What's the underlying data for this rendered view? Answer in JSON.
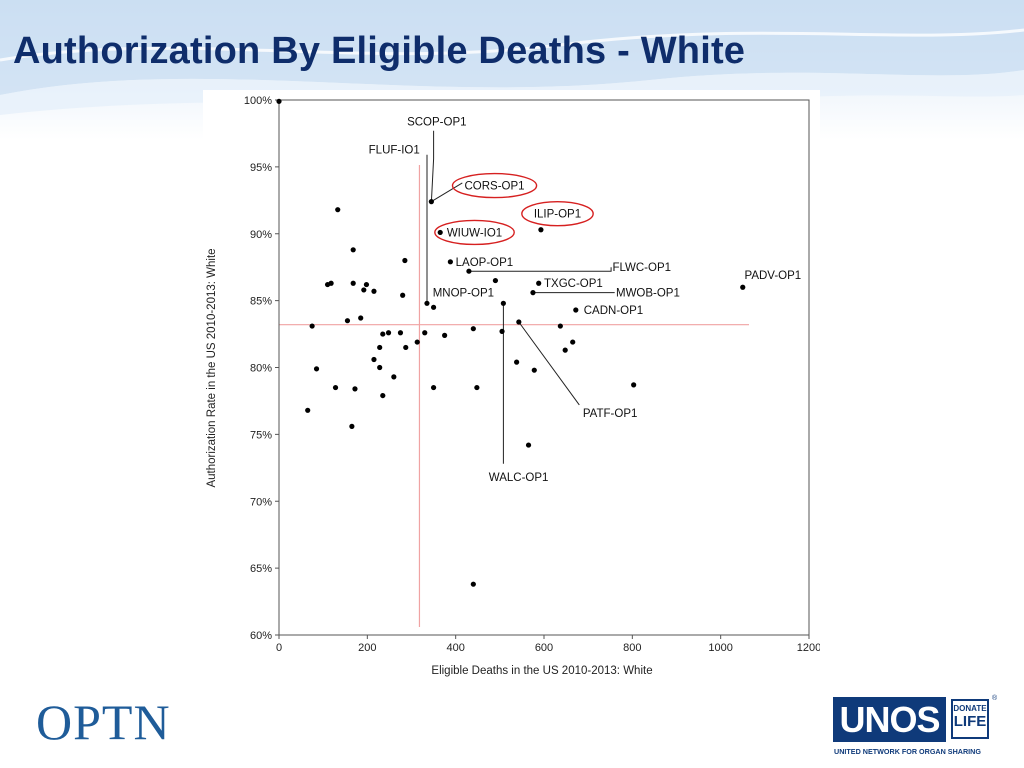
{
  "slide": {
    "title": "Authorization By Eligible Deaths - White"
  },
  "logos": {
    "optn": "OPTN",
    "unos": "UNOS",
    "donate_life_top": "DONATE",
    "donate_life_bottom": "LIFE",
    "registered": "®",
    "unos_tagline": "UNITED NETWORK FOR ORGAN SHARING"
  },
  "colors": {
    "title": "#0f2d6b",
    "reference_line": "#f0a3a3",
    "highlight_ellipse": "#d62020",
    "point": "#000000"
  },
  "chart_data": {
    "type": "scatter",
    "title": "",
    "xlabel": "Eligible Deaths in the US 2010-2013: White",
    "ylabel": "Authorization Rate in the US 2010-2013: White",
    "xlim": [
      0,
      1200
    ],
    "ylim": [
      60,
      100
    ],
    "xticks": [
      {
        "value": 0,
        "label": "0"
      },
      {
        "value": 200,
        "label": "200"
      },
      {
        "value": 400,
        "label": "400"
      },
      {
        "value": 600,
        "label": "600"
      },
      {
        "value": 800,
        "label": "800"
      },
      {
        "value": 1000,
        "label": "1000"
      },
      {
        "value": 1200,
        "label": "1200"
      }
    ],
    "yticks": [
      {
        "value": 60,
        "label": "60%"
      },
      {
        "value": 65,
        "label": "65%"
      },
      {
        "value": 70,
        "label": "70%"
      },
      {
        "value": 75,
        "label": "75%"
      },
      {
        "value": 80,
        "label": "80%"
      },
      {
        "value": 85,
        "label": "85%"
      },
      {
        "value": 90,
        "label": "90%"
      },
      {
        "value": 95,
        "label": "95%"
      },
      {
        "value": 100,
        "label": "100%"
      }
    ],
    "grid": false,
    "reference_lines": {
      "x": 318,
      "y": 83.2
    },
    "points": [
      {
        "x": 0,
        "y": 99.9
      },
      {
        "x": 133,
        "y": 91.8
      },
      {
        "x": 168,
        "y": 88.8
      },
      {
        "x": 285,
        "y": 88.0
      },
      {
        "x": 110,
        "y": 86.2
      },
      {
        "x": 118,
        "y": 86.3
      },
      {
        "x": 168,
        "y": 86.3
      },
      {
        "x": 192,
        "y": 85.8
      },
      {
        "x": 198,
        "y": 86.2
      },
      {
        "x": 215,
        "y": 85.7
      },
      {
        "x": 280,
        "y": 85.4
      },
      {
        "x": 155,
        "y": 83.5
      },
      {
        "x": 185,
        "y": 83.7
      },
      {
        "x": 75,
        "y": 83.1
      },
      {
        "x": 235,
        "y": 82.5
      },
      {
        "x": 248,
        "y": 82.6
      },
      {
        "x": 275,
        "y": 82.6
      },
      {
        "x": 330,
        "y": 82.6
      },
      {
        "x": 375,
        "y": 82.4
      },
      {
        "x": 313,
        "y": 81.9
      },
      {
        "x": 228,
        "y": 81.5
      },
      {
        "x": 287,
        "y": 81.5
      },
      {
        "x": 215,
        "y": 80.6
      },
      {
        "x": 228,
        "y": 80.0
      },
      {
        "x": 85,
        "y": 79.9
      },
      {
        "x": 260,
        "y": 79.3
      },
      {
        "x": 128,
        "y": 78.5
      },
      {
        "x": 172,
        "y": 78.4
      },
      {
        "x": 350,
        "y": 78.5
      },
      {
        "x": 235,
        "y": 77.9
      },
      {
        "x": 65,
        "y": 76.8
      },
      {
        "x": 165,
        "y": 75.6
      },
      {
        "x": 440,
        "y": 82.9
      },
      {
        "x": 505,
        "y": 82.7
      },
      {
        "x": 538,
        "y": 80.4
      },
      {
        "x": 578,
        "y": 79.8
      },
      {
        "x": 448,
        "y": 78.5
      },
      {
        "x": 565,
        "y": 74.2
      },
      {
        "x": 637,
        "y": 83.1
      },
      {
        "x": 648,
        "y": 81.3
      },
      {
        "x": 665,
        "y": 81.9
      },
      {
        "x": 803,
        "y": 78.7
      },
      {
        "x": 440,
        "y": 63.8
      }
    ],
    "labeled_points": [
      {
        "name": "SCOP-OP1",
        "x": 345,
        "y": 92.4,
        "highlight": false,
        "leader": [
          [
            345,
            92.4
          ],
          [
            350,
            95.6
          ],
          [
            350,
            97.7
          ]
        ],
        "text_x": 290,
        "text_y": 98.4,
        "anchor": "start"
      },
      {
        "name": "FLUF-IO1",
        "x": 335,
        "y": 84.8,
        "highlight": false,
        "leader": [
          [
            335,
            84.8
          ],
          [
            335,
            95.9
          ]
        ],
        "text_x": 203,
        "text_y": 96.3,
        "anchor": "start"
      },
      {
        "name": "CORS-OP1",
        "x": 350,
        "y": 84.5,
        "highlight": true,
        "leader": [
          [
            345,
            92.4
          ],
          [
            415,
            93.8
          ]
        ],
        "text_x": 420,
        "text_y": 93.6,
        "anchor": "start"
      },
      {
        "name": "ILIP-OP1",
        "x": 593,
        "y": 90.3,
        "highlight": true,
        "leader": [],
        "text_x": 577,
        "text_y": 91.5,
        "anchor": "start"
      },
      {
        "name": "WIUW-IO1",
        "x": 365,
        "y": 90.1,
        "highlight": true,
        "leader": [],
        "text_x": 380,
        "text_y": 90.1,
        "anchor": "start"
      },
      {
        "name": "LAOP-OP1",
        "x": 388,
        "y": 87.9,
        "highlight": false,
        "leader": [],
        "text_x": 400,
        "text_y": 87.9,
        "anchor": "start"
      },
      {
        "name": "FLWC-OP1",
        "x": 430,
        "y": 87.2,
        "highlight": false,
        "leader": [
          [
            430,
            87.2
          ],
          [
            752,
            87.2
          ],
          [
            752,
            87.5
          ]
        ],
        "text_x": 755,
        "text_y": 87.5,
        "anchor": "start"
      },
      {
        "name": "TXGC-OP1",
        "x": 588,
        "y": 86.3,
        "highlight": false,
        "leader": [],
        "text_x": 600,
        "text_y": 86.3,
        "anchor": "start"
      },
      {
        "name": "MWOB-OP1",
        "x": 575,
        "y": 85.6,
        "highlight": false,
        "leader": [
          [
            575,
            85.6
          ],
          [
            760,
            85.6
          ]
        ],
        "text_x": 763,
        "text_y": 85.6,
        "anchor": "start"
      },
      {
        "name": "PADV-OP1",
        "x": 1050,
        "y": 86.0,
        "highlight": false,
        "leader": [],
        "text_x": 1054,
        "text_y": 86.9,
        "anchor": "start"
      },
      {
        "name": "MNOP-OP1",
        "x": 490,
        "y": 86.5,
        "highlight": false,
        "leader": [],
        "text_x": 348,
        "text_y": 85.6,
        "anchor": "start"
      },
      {
        "name": "CADN-OP1",
        "x": 672,
        "y": 84.3,
        "highlight": false,
        "leader": [],
        "text_x": 690,
        "text_y": 84.3,
        "anchor": "start"
      },
      {
        "name": "PATF-OP1",
        "x": 543,
        "y": 83.4,
        "highlight": false,
        "leader": [
          [
            543,
            83.4
          ],
          [
            680,
            77.2
          ]
        ],
        "text_x": 688,
        "text_y": 76.6,
        "anchor": "start"
      },
      {
        "name": "WALC-OP1",
        "x": 508,
        "y": 84.8,
        "highlight": false,
        "leader": [
          [
            508,
            84.8
          ],
          [
            508,
            72.8
          ]
        ],
        "text_x": 475,
        "text_y": 71.8,
        "anchor": "start"
      }
    ]
  }
}
